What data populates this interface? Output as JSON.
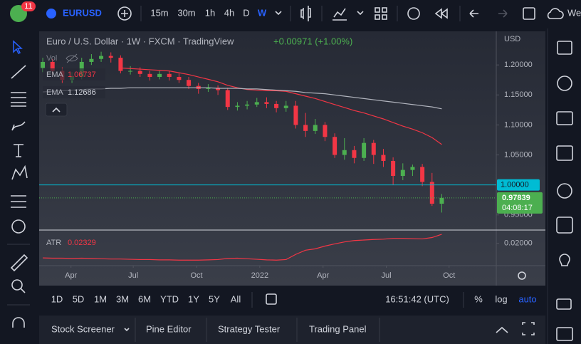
{
  "chart_data": [
    {
      "type": "candlestick",
      "title": "Euro / U.S. Dollar · 1W · FXCM · TradingView",
      "change": "+0.00971 (+1.00%)",
      "currency": "USD",
      "open": [
        1.195,
        1.205,
        1.19,
        1.175,
        1.18,
        1.205,
        1.21,
        1.215,
        1.212,
        1.19,
        1.19,
        1.185,
        1.18,
        1.185,
        1.18,
        1.175,
        1.165,
        1.16,
        1.162,
        1.158,
        1.13,
        1.132,
        1.134,
        1.138,
        1.135,
        1.128,
        1.132,
        1.1,
        1.09,
        1.1,
        1.08,
        1.05,
        1.058,
        1.045,
        1.07,
        1.05,
        1.04,
        1.015,
        1.025,
        1.03,
        1.005,
        0.9687
      ],
      "high": [
        1.212,
        1.21,
        1.196,
        1.188,
        1.212,
        1.218,
        1.222,
        1.221,
        1.216,
        1.198,
        1.196,
        1.19,
        1.19,
        1.19,
        1.186,
        1.18,
        1.17,
        1.168,
        1.166,
        1.162,
        1.138,
        1.14,
        1.145,
        1.146,
        1.14,
        1.14,
        1.14,
        1.12,
        1.11,
        1.105,
        1.086,
        1.078,
        1.065,
        1.078,
        1.075,
        1.06,
        1.046,
        1.036,
        1.034,
        1.035,
        1.02,
        0.985
      ],
      "low": [
        1.188,
        1.184,
        1.17,
        1.17,
        1.176,
        1.2,
        1.205,
        1.204,
        1.186,
        1.184,
        1.18,
        1.174,
        1.176,
        1.174,
        1.17,
        1.16,
        1.152,
        1.155,
        1.15,
        1.125,
        1.124,
        1.126,
        1.13,
        1.128,
        1.121,
        1.122,
        1.094,
        1.08,
        1.085,
        1.073,
        1.045,
        1.042,
        1.036,
        1.04,
        1.035,
        1.03,
        1.0,
        1.008,
        1.015,
        0.998,
        0.965,
        0.954
      ],
      "close": [
        1.205,
        1.19,
        1.175,
        1.18,
        1.205,
        1.21,
        1.215,
        1.212,
        1.19,
        1.19,
        1.185,
        1.18,
        1.185,
        1.18,
        1.175,
        1.165,
        1.16,
        1.162,
        1.158,
        1.13,
        1.132,
        1.134,
        1.138,
        1.135,
        1.128,
        1.132,
        1.1,
        1.09,
        1.1,
        1.08,
        1.05,
        1.058,
        1.045,
        1.07,
        1.05,
        1.04,
        1.015,
        1.025,
        1.03,
        1.005,
        0.9687,
        0.97839
      ],
      "up_color": "#4caf50",
      "down_color": "#f23645",
      "volume_label": "Vol",
      "series": [
        {
          "name": "EMA",
          "color": "#f23645",
          "last": 1.06737,
          "values": [
            null,
            null,
            null,
            null,
            null,
            null,
            null,
            null,
            1.195,
            1.194,
            1.193,
            1.192,
            1.191,
            1.19,
            1.187,
            1.184,
            1.18,
            1.176,
            1.172,
            1.166,
            1.162,
            1.159,
            1.158,
            1.157,
            1.157,
            1.156,
            1.152,
            1.148,
            1.144,
            1.139,
            1.134,
            1.129,
            1.124,
            1.12,
            1.115,
            1.11,
            1.104,
            1.098,
            1.093,
            1.087,
            1.079,
            1.06737
          ]
        },
        {
          "name": "EMA",
          "color": "#b2b5be",
          "last": 1.12686,
          "values": [
            1.155,
            1.156,
            1.157,
            1.158,
            1.159,
            1.16,
            1.16,
            1.161,
            1.161,
            1.162,
            1.162,
            1.162,
            1.162,
            1.162,
            1.162,
            1.162,
            1.162,
            1.162,
            1.161,
            1.161,
            1.161,
            1.16,
            1.16,
            1.159,
            1.158,
            1.157,
            1.156,
            1.154,
            1.153,
            1.152,
            1.15,
            1.148,
            1.146,
            1.144,
            1.142,
            1.14,
            1.138,
            1.136,
            1.134,
            1.132,
            1.13,
            1.12686
          ]
        }
      ],
      "hline": {
        "value": 1,
        "label": "1.00000",
        "color": "#00bcd4"
      },
      "last_price": 0.97839,
      "countdown": "04:08:17",
      "xlim": [
        -0.37,
        46.6
      ],
      "xticks": [
        {
          "value": 2.9,
          "label": "Apr"
        },
        {
          "value": 9.3,
          "label": "Jul"
        },
        {
          "value": 15.8,
          "label": "Oct"
        },
        {
          "value": 22.3,
          "label": "2022"
        },
        {
          "value": 28.8,
          "label": "Apr"
        },
        {
          "value": 35.3,
          "label": "Jul"
        },
        {
          "value": 41.75,
          "label": "Oct"
        }
      ],
      "ylim": [
        0.926,
        1.256
      ],
      "yticks": [
        {
          "value": 1.2,
          "label": "1.20000"
        },
        {
          "value": 1.15,
          "label": "1.15000"
        },
        {
          "value": 1.1,
          "label": "1.10000"
        },
        {
          "value": 1.05,
          "label": "1.05000"
        },
        {
          "value": 0.95,
          "label": "0.95000"
        }
      ]
    },
    {
      "type": "line",
      "name": "ATR",
      "color": "#f23645",
      "last": 0.02329,
      "values": [
        0.0147,
        0.0146,
        0.0146,
        0.0145,
        0.0146,
        0.0145,
        0.0144,
        0.0143,
        0.0143,
        0.0142,
        0.0141,
        0.0141,
        0.014,
        0.014,
        0.0139,
        0.0139,
        0.0139,
        0.014,
        0.0141,
        0.0145,
        0.0146,
        0.0144,
        0.0142,
        0.014,
        0.0139,
        0.0141,
        0.016,
        0.0175,
        0.018,
        0.019,
        0.0198,
        0.0205,
        0.021,
        0.0212,
        0.0214,
        0.0215,
        0.0218,
        0.0218,
        0.0217,
        0.0216,
        0.0221,
        0.02329
      ],
      "ylim": [
        0.01215,
        0.02456
      ],
      "yticks": [
        {
          "value": 0.02,
          "label": "0.02000"
        }
      ]
    }
  ],
  "ui": {
    "top": {
      "badge": "11",
      "symbol": "EURUSD",
      "intervals": [
        "15m",
        "30m",
        "1h",
        "4h",
        "D",
        "W"
      ],
      "cut_label": "We"
    },
    "bottom": {
      "ranges": [
        "1D",
        "5D",
        "1M",
        "3M",
        "6M",
        "YTD",
        "1Y",
        "5Y",
        "All"
      ],
      "clock": "16:51:42 (UTC)",
      "percent": "%",
      "log": "log",
      "auto": "auto"
    },
    "tabs": [
      "Stock Screener",
      "Pine Editor",
      "Strategy Tester",
      "Trading Panel"
    ]
  }
}
